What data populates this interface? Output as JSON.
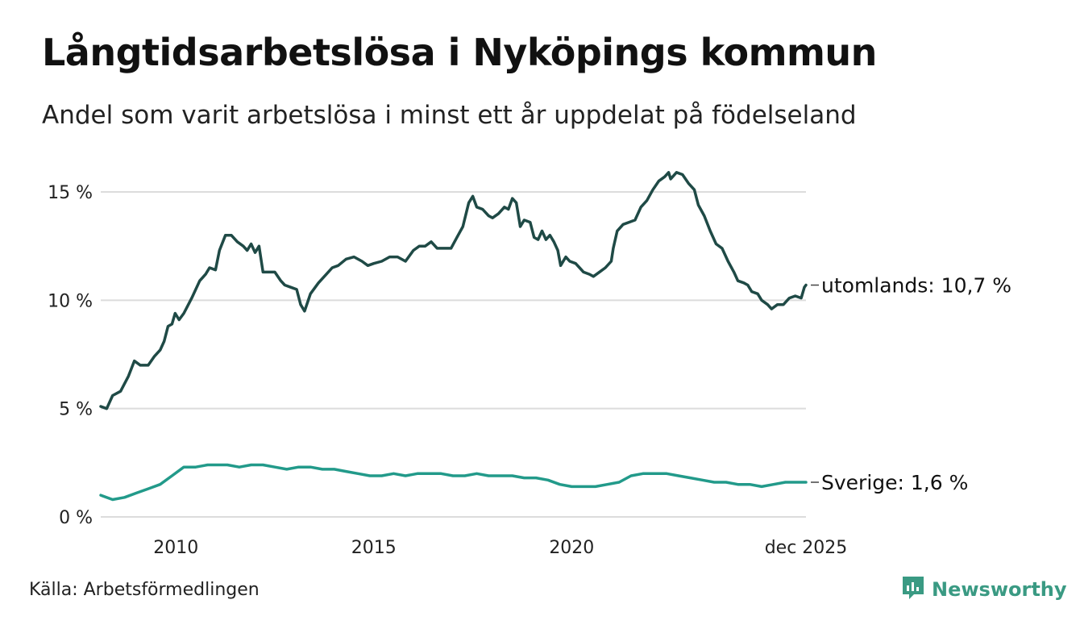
{
  "title": "Långtidsarbetslösa i Nyköpings kommun",
  "subtitle": "Andel som varit arbetslösa i minst ett år uppdelat på födelseland",
  "source": "Källa: Arbetsförmedlingen",
  "brand": {
    "name": "Newsworthy",
    "icon": "newsworthy-logo-icon",
    "color": "#3a9a83"
  },
  "chart_data": {
    "type": "line",
    "title": "Långtidsarbetslösa i Nyköpings kommun",
    "ylabel": "",
    "xlabel": "",
    "ylim": [
      0,
      16
    ],
    "xlim": [
      2008.1,
      2025.92
    ],
    "grid": true,
    "y_ticks": [
      {
        "value": 0,
        "label": "0 %"
      },
      {
        "value": 5,
        "label": "5 %"
      },
      {
        "value": 10,
        "label": "10 %"
      },
      {
        "value": 15,
        "label": "15 %"
      }
    ],
    "x_ticks": [
      {
        "value": 2010,
        "label": "2010"
      },
      {
        "value": 2015,
        "label": "2015"
      },
      {
        "value": 2020,
        "label": "2020"
      },
      {
        "value": 2025.92,
        "label": "dec 2025"
      }
    ],
    "series": [
      {
        "name": "utomlands",
        "color": "#1f4a46",
        "end_label": "utomlands: 10,7 %",
        "points": [
          [
            2008.1,
            5.1
          ],
          [
            2008.25,
            5.0
          ],
          [
            2008.4,
            5.6
          ],
          [
            2008.6,
            5.8
          ],
          [
            2008.8,
            6.5
          ],
          [
            2008.95,
            7.2
          ],
          [
            2009.1,
            7.0
          ],
          [
            2009.3,
            7.0
          ],
          [
            2009.45,
            7.4
          ],
          [
            2009.6,
            7.7
          ],
          [
            2009.7,
            8.1
          ],
          [
            2009.8,
            8.8
          ],
          [
            2009.9,
            8.9
          ],
          [
            2009.98,
            9.4
          ],
          [
            2010.08,
            9.1
          ],
          [
            2010.2,
            9.4
          ],
          [
            2010.4,
            10.1
          ],
          [
            2010.6,
            10.9
          ],
          [
            2010.75,
            11.2
          ],
          [
            2010.85,
            11.5
          ],
          [
            2011.0,
            11.4
          ],
          [
            2011.1,
            12.3
          ],
          [
            2011.25,
            13.0
          ],
          [
            2011.4,
            13.0
          ],
          [
            2011.55,
            12.7
          ],
          [
            2011.7,
            12.5
          ],
          [
            2011.8,
            12.3
          ],
          [
            2011.9,
            12.6
          ],
          [
            2012.0,
            12.2
          ],
          [
            2012.1,
            12.5
          ],
          [
            2012.2,
            11.3
          ],
          [
            2012.35,
            11.3
          ],
          [
            2012.5,
            11.3
          ],
          [
            2012.65,
            10.9
          ],
          [
            2012.75,
            10.7
          ],
          [
            2012.9,
            10.6
          ],
          [
            2013.05,
            10.5
          ],
          [
            2013.15,
            9.8
          ],
          [
            2013.25,
            9.5
          ],
          [
            2013.4,
            10.3
          ],
          [
            2013.6,
            10.8
          ],
          [
            2013.8,
            11.2
          ],
          [
            2013.95,
            11.5
          ],
          [
            2014.1,
            11.6
          ],
          [
            2014.3,
            11.9
          ],
          [
            2014.5,
            12.0
          ],
          [
            2014.7,
            11.8
          ],
          [
            2014.85,
            11.6
          ],
          [
            2015.0,
            11.7
          ],
          [
            2015.2,
            11.8
          ],
          [
            2015.4,
            12.0
          ],
          [
            2015.6,
            12.0
          ],
          [
            2015.8,
            11.8
          ],
          [
            2016.0,
            12.3
          ],
          [
            2016.15,
            12.5
          ],
          [
            2016.3,
            12.5
          ],
          [
            2016.45,
            12.7
          ],
          [
            2016.6,
            12.4
          ],
          [
            2016.8,
            12.4
          ],
          [
            2016.95,
            12.4
          ],
          [
            2017.1,
            12.9
          ],
          [
            2017.25,
            13.4
          ],
          [
            2017.4,
            14.5
          ],
          [
            2017.5,
            14.8
          ],
          [
            2017.6,
            14.3
          ],
          [
            2017.75,
            14.2
          ],
          [
            2017.9,
            13.9
          ],
          [
            2018.0,
            13.8
          ],
          [
            2018.15,
            14.0
          ],
          [
            2018.3,
            14.3
          ],
          [
            2018.4,
            14.2
          ],
          [
            2018.5,
            14.7
          ],
          [
            2018.6,
            14.5
          ],
          [
            2018.7,
            13.4
          ],
          [
            2018.8,
            13.7
          ],
          [
            2018.95,
            13.6
          ],
          [
            2019.05,
            12.9
          ],
          [
            2019.15,
            12.8
          ],
          [
            2019.25,
            13.2
          ],
          [
            2019.35,
            12.8
          ],
          [
            2019.45,
            13.0
          ],
          [
            2019.55,
            12.7
          ],
          [
            2019.65,
            12.3
          ],
          [
            2019.72,
            11.6
          ],
          [
            2019.85,
            12.0
          ],
          [
            2019.95,
            11.8
          ],
          [
            2020.1,
            11.7
          ],
          [
            2020.2,
            11.5
          ],
          [
            2020.3,
            11.3
          ],
          [
            2020.45,
            11.2
          ],
          [
            2020.55,
            11.1
          ],
          [
            2020.7,
            11.3
          ],
          [
            2020.85,
            11.5
          ],
          [
            2021.0,
            11.8
          ],
          [
            2021.05,
            12.4
          ],
          [
            2021.15,
            13.2
          ],
          [
            2021.3,
            13.5
          ],
          [
            2021.45,
            13.6
          ],
          [
            2021.6,
            13.7
          ],
          [
            2021.75,
            14.3
          ],
          [
            2021.9,
            14.6
          ],
          [
            2022.05,
            15.1
          ],
          [
            2022.2,
            15.5
          ],
          [
            2022.35,
            15.7
          ],
          [
            2022.45,
            15.9
          ],
          [
            2022.5,
            15.6
          ],
          [
            2022.65,
            15.9
          ],
          [
            2022.8,
            15.8
          ],
          [
            2022.95,
            15.4
          ],
          [
            2023.1,
            15.1
          ],
          [
            2023.2,
            14.4
          ],
          [
            2023.35,
            13.9
          ],
          [
            2023.5,
            13.2
          ],
          [
            2023.65,
            12.6
          ],
          [
            2023.8,
            12.4
          ],
          [
            2023.95,
            11.8
          ],
          [
            2024.1,
            11.3
          ],
          [
            2024.2,
            10.9
          ],
          [
            2024.35,
            10.8
          ],
          [
            2024.45,
            10.7
          ],
          [
            2024.55,
            10.4
          ],
          [
            2024.7,
            10.3
          ],
          [
            2024.8,
            10.0
          ],
          [
            2024.95,
            9.8
          ],
          [
            2025.05,
            9.6
          ],
          [
            2025.2,
            9.8
          ],
          [
            2025.35,
            9.8
          ],
          [
            2025.5,
            10.1
          ],
          [
            2025.65,
            10.2
          ],
          [
            2025.8,
            10.1
          ],
          [
            2025.88,
            10.6
          ],
          [
            2025.92,
            10.7
          ]
        ]
      },
      {
        "name": "Sverige",
        "color": "#229a8a",
        "end_label": "Sverige:  1,6 %",
        "points": [
          [
            2008.1,
            1.0
          ],
          [
            2008.4,
            0.8
          ],
          [
            2008.7,
            0.9
          ],
          [
            2009.0,
            1.1
          ],
          [
            2009.3,
            1.3
          ],
          [
            2009.6,
            1.5
          ],
          [
            2009.9,
            1.9
          ],
          [
            2010.2,
            2.3
          ],
          [
            2010.5,
            2.3
          ],
          [
            2010.8,
            2.4
          ],
          [
            2011.0,
            2.4
          ],
          [
            2011.3,
            2.4
          ],
          [
            2011.6,
            2.3
          ],
          [
            2011.9,
            2.4
          ],
          [
            2012.2,
            2.4
          ],
          [
            2012.5,
            2.3
          ],
          [
            2012.8,
            2.2
          ],
          [
            2013.1,
            2.3
          ],
          [
            2013.4,
            2.3
          ],
          [
            2013.7,
            2.2
          ],
          [
            2014.0,
            2.2
          ],
          [
            2014.3,
            2.1
          ],
          [
            2014.6,
            2.0
          ],
          [
            2014.9,
            1.9
          ],
          [
            2015.2,
            1.9
          ],
          [
            2015.5,
            2.0
          ],
          [
            2015.8,
            1.9
          ],
          [
            2016.1,
            2.0
          ],
          [
            2016.4,
            2.0
          ],
          [
            2016.7,
            2.0
          ],
          [
            2017.0,
            1.9
          ],
          [
            2017.3,
            1.9
          ],
          [
            2017.6,
            2.0
          ],
          [
            2017.9,
            1.9
          ],
          [
            2018.2,
            1.9
          ],
          [
            2018.5,
            1.9
          ],
          [
            2018.8,
            1.8
          ],
          [
            2019.1,
            1.8
          ],
          [
            2019.4,
            1.7
          ],
          [
            2019.7,
            1.5
          ],
          [
            2020.0,
            1.4
          ],
          [
            2020.3,
            1.4
          ],
          [
            2020.6,
            1.4
          ],
          [
            2020.9,
            1.5
          ],
          [
            2021.2,
            1.6
          ],
          [
            2021.5,
            1.9
          ],
          [
            2021.8,
            2.0
          ],
          [
            2022.1,
            2.0
          ],
          [
            2022.4,
            2.0
          ],
          [
            2022.7,
            1.9
          ],
          [
            2023.0,
            1.8
          ],
          [
            2023.3,
            1.7
          ],
          [
            2023.6,
            1.6
          ],
          [
            2023.9,
            1.6
          ],
          [
            2024.2,
            1.5
          ],
          [
            2024.5,
            1.5
          ],
          [
            2024.8,
            1.4
          ],
          [
            2025.1,
            1.5
          ],
          [
            2025.4,
            1.6
          ],
          [
            2025.7,
            1.6
          ],
          [
            2025.92,
            1.6
          ]
        ]
      }
    ]
  }
}
